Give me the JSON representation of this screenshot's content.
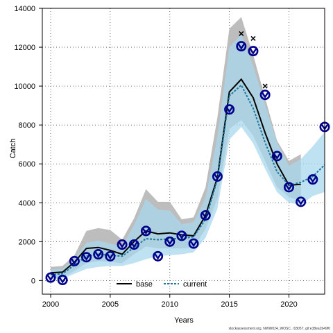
{
  "footer_text": "stockassessment.org, NWW024_WOSC, r18057, git:e38ea2b49f0",
  "chart_data": {
    "type": "line",
    "xlabel": "Years",
    "ylabel": "Catch",
    "xlim": [
      1999.3,
      2023
    ],
    "ylim": [
      -700,
      14000
    ],
    "xticks": [
      2000,
      2005,
      2010,
      2015,
      2020
    ],
    "yticks": [
      0,
      2000,
      4000,
      6000,
      8000,
      10000,
      12000,
      14000
    ],
    "grid": true,
    "legend": {
      "position": "bottom-center",
      "entries": [
        "base",
        "current"
      ]
    },
    "colors": {
      "base_band": "#bdbdbd",
      "current_band": "#a8d8ee",
      "base_line": "#000000",
      "current_line": "#1a7aa0",
      "observed": "#00008b",
      "extra_obs": "#000000"
    },
    "x": [
      2000,
      2001,
      2002,
      2003,
      2004,
      2005,
      2006,
      2007,
      2008,
      2009,
      2010,
      2011,
      2012,
      2013,
      2014,
      2015,
      2016,
      2017,
      2018,
      2019,
      2020,
      2021,
      2022,
      2023
    ],
    "series": [
      {
        "name": "base",
        "style": "solid",
        "values": [
          400,
          430,
          950,
          1650,
          1700,
          1550,
          1350,
          2000,
          2550,
          2400,
          2450,
          2350,
          2300,
          3350,
          5300,
          9700,
          10350,
          9400,
          7600,
          6000,
          4900,
          4950,
          null,
          null
        ],
        "lower": [
          100,
          150,
          500,
          900,
          1000,
          950,
          900,
          1350,
          1750,
          1650,
          1650,
          1650,
          1700,
          2650,
          4200,
          7800,
          8250,
          7450,
          6150,
          4800,
          4300,
          4100,
          null,
          null
        ],
        "upper": [
          700,
          750,
          1300,
          2550,
          2700,
          2600,
          2100,
          3200,
          4700,
          4050,
          4050,
          3150,
          3250,
          4800,
          8400,
          12950,
          13550,
          11600,
          9400,
          7200,
          6150,
          6500,
          null,
          null
        ]
      },
      {
        "name": "current",
        "style": "dashed",
        "values": [
          300,
          350,
          800,
          1250,
          1350,
          1300,
          1250,
          1700,
          2150,
          2100,
          2150,
          2150,
          2250,
          3150,
          5200,
          9500,
          10050,
          8850,
          7100,
          5600,
          4900,
          5050,
          5350,
          5950
        ],
        "lower": [
          100,
          100,
          350,
          600,
          700,
          750,
          750,
          900,
          1100,
          1250,
          1300,
          1350,
          1450,
          2200,
          3700,
          7250,
          7900,
          7050,
          5750,
          4550,
          4000,
          3900,
          4350,
          4550
        ],
        "upper": [
          550,
          600,
          1100,
          1950,
          2050,
          1900,
          1750,
          2850,
          4200,
          3650,
          3600,
          2900,
          3000,
          4250,
          7400,
          12000,
          12650,
          11050,
          9050,
          7100,
          5900,
          6250,
          6900,
          7650
        ]
      }
    ],
    "observed": {
      "x": [
        2000,
        2001,
        2002,
        2003,
        2004,
        2005,
        2006,
        2007,
        2008,
        2009,
        2010,
        2011,
        2012,
        2013,
        2014,
        2015,
        2016,
        2017,
        2018,
        2019,
        2020,
        2021,
        2022,
        2023
      ],
      "values": [
        150,
        30,
        1000,
        1200,
        1350,
        1250,
        1850,
        1850,
        2550,
        1250,
        2000,
        2300,
        1900,
        3350,
        5350,
        8800,
        12050,
        11800,
        9550,
        6400,
        4800,
        4050,
        5200,
        7900
      ]
    },
    "extra_points": {
      "x": [
        2016,
        2017,
        2018
      ],
      "values": [
        12700,
        12450,
        10000
      ]
    }
  }
}
